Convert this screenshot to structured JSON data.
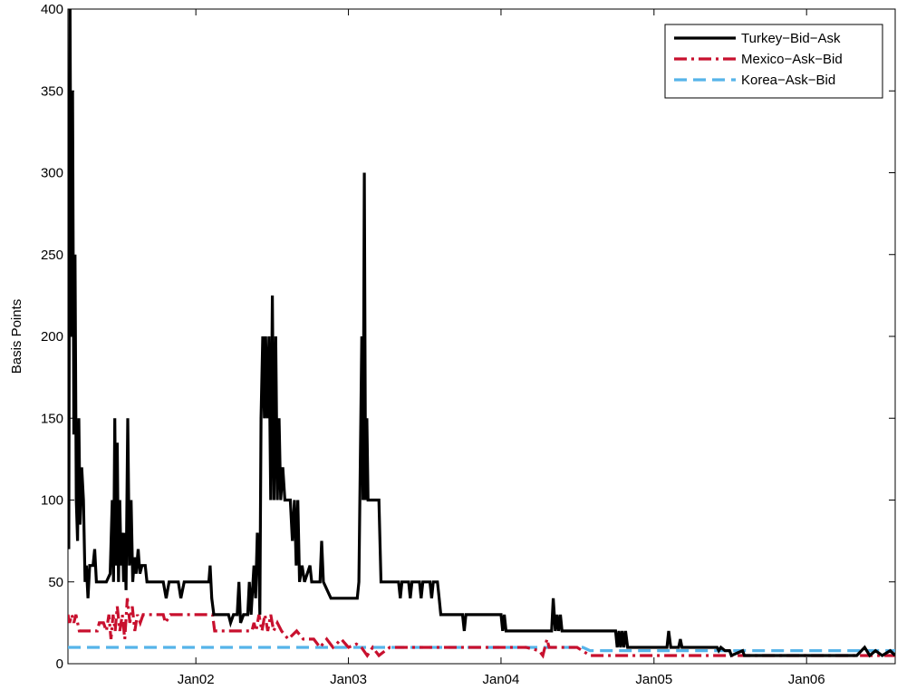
{
  "chart_data": {
    "type": "line",
    "title": "",
    "xlabel": "",
    "ylabel": "Basis Points",
    "x_unit": "date",
    "xlim": [
      "2001-03-01",
      "2006-08-01"
    ],
    "ylim": [
      0,
      400
    ],
    "y_ticks": [
      0,
      50,
      100,
      150,
      200,
      250,
      300,
      350,
      400
    ],
    "x_ticks": [
      {
        "date": "2002-01-01",
        "label": "Jan02"
      },
      {
        "date": "2003-01-01",
        "label": "Jan03"
      },
      {
        "date": "2004-01-01",
        "label": "Jan04"
      },
      {
        "date": "2005-01-01",
        "label": "Jan05"
      },
      {
        "date": "2006-01-01",
        "label": "Jan06"
      }
    ],
    "grid": false,
    "legend_position": "top-right",
    "series": [
      {
        "name": "Turkey−Bid−Ask",
        "color": "#000000",
        "style": "solid",
        "points": [
          [
            "2001-03-01",
            120
          ],
          [
            "2001-03-03",
            70
          ],
          [
            "2001-03-06",
            400
          ],
          [
            "2001-03-09",
            200
          ],
          [
            "2001-03-12",
            350
          ],
          [
            "2001-03-15",
            140
          ],
          [
            "2001-03-18",
            250
          ],
          [
            "2001-03-21",
            100
          ],
          [
            "2001-03-24",
            75
          ],
          [
            "2001-03-27",
            150
          ],
          [
            "2001-03-30",
            85
          ],
          [
            "2001-04-03",
            120
          ],
          [
            "2001-04-07",
            100
          ],
          [
            "2001-04-11",
            50
          ],
          [
            "2001-04-14",
            60
          ],
          [
            "2001-04-18",
            40
          ],
          [
            "2001-04-22",
            60
          ],
          [
            "2001-04-30",
            60
          ],
          [
            "2001-05-04",
            70
          ],
          [
            "2001-05-08",
            50
          ],
          [
            "2001-06-01",
            50
          ],
          [
            "2001-06-10",
            55
          ],
          [
            "2001-06-15",
            100
          ],
          [
            "2001-06-18",
            50
          ],
          [
            "2001-06-21",
            150
          ],
          [
            "2001-06-24",
            60
          ],
          [
            "2001-06-27",
            135
          ],
          [
            "2001-06-30",
            50
          ],
          [
            "2001-07-03",
            100
          ],
          [
            "2001-07-06",
            60
          ],
          [
            "2001-07-09",
            80
          ],
          [
            "2001-07-12",
            50
          ],
          [
            "2001-07-15",
            80
          ],
          [
            "2001-07-18",
            45
          ],
          [
            "2001-07-22",
            150
          ],
          [
            "2001-07-26",
            60
          ],
          [
            "2001-07-30",
            100
          ],
          [
            "2001-08-03",
            50
          ],
          [
            "2001-08-07",
            65
          ],
          [
            "2001-08-11",
            55
          ],
          [
            "2001-08-16",
            70
          ],
          [
            "2001-08-20",
            55
          ],
          [
            "2001-08-25",
            60
          ],
          [
            "2001-09-02",
            60
          ],
          [
            "2001-09-06",
            50
          ],
          [
            "2001-10-15",
            50
          ],
          [
            "2001-10-22",
            40
          ],
          [
            "2001-10-29",
            50
          ],
          [
            "2001-11-20",
            50
          ],
          [
            "2001-11-26",
            40
          ],
          [
            "2001-12-04",
            50
          ],
          [
            "2002-01-15",
            50
          ],
          [
            "2002-02-01",
            50
          ],
          [
            "2002-02-04",
            60
          ],
          [
            "2002-02-08",
            40
          ],
          [
            "2002-02-13",
            30
          ],
          [
            "2002-03-20",
            30
          ],
          [
            "2002-03-25",
            25
          ],
          [
            "2002-04-01",
            30
          ],
          [
            "2002-04-10",
            30
          ],
          [
            "2002-04-14",
            50
          ],
          [
            "2002-04-18",
            25
          ],
          [
            "2002-04-25",
            30
          ],
          [
            "2002-05-05",
            30
          ],
          [
            "2002-05-09",
            50
          ],
          [
            "2002-05-13",
            30
          ],
          [
            "2002-05-20",
            60
          ],
          [
            "2002-05-24",
            40
          ],
          [
            "2002-05-28",
            80
          ],
          [
            "2002-06-01",
            60
          ],
          [
            "2002-06-03",
            30
          ],
          [
            "2002-06-06",
            150
          ],
          [
            "2002-06-10",
            200
          ],
          [
            "2002-06-14",
            150
          ],
          [
            "2002-06-17",
            200
          ],
          [
            "2002-06-21",
            150
          ],
          [
            "2002-06-25",
            200
          ],
          [
            "2002-06-29",
            100
          ],
          [
            "2002-07-03",
            225
          ],
          [
            "2002-07-07",
            100
          ],
          [
            "2002-07-11",
            200
          ],
          [
            "2002-07-15",
            100
          ],
          [
            "2002-07-19",
            150
          ],
          [
            "2002-07-23",
            100
          ],
          [
            "2002-07-28",
            120
          ],
          [
            "2002-08-02",
            100
          ],
          [
            "2002-08-15",
            100
          ],
          [
            "2002-08-20",
            75
          ],
          [
            "2002-08-25",
            100
          ],
          [
            "2002-08-29",
            60
          ],
          [
            "2002-09-02",
            100
          ],
          [
            "2002-09-06",
            50
          ],
          [
            "2002-09-12",
            60
          ],
          [
            "2002-09-18",
            50
          ],
          [
            "2002-10-01",
            60
          ],
          [
            "2002-10-05",
            50
          ],
          [
            "2002-10-25",
            50
          ],
          [
            "2002-10-29",
            75
          ],
          [
            "2002-11-02",
            50
          ],
          [
            "2002-11-20",
            40
          ],
          [
            "2003-01-01",
            40
          ],
          [
            "2003-01-22",
            40
          ],
          [
            "2003-01-26",
            50
          ],
          [
            "2003-02-02",
            200
          ],
          [
            "2003-02-05",
            100
          ],
          [
            "2003-02-08",
            300
          ],
          [
            "2003-02-11",
            100
          ],
          [
            "2003-02-14",
            150
          ],
          [
            "2003-02-17",
            100
          ],
          [
            "2003-03-15",
            100
          ],
          [
            "2003-03-20",
            50
          ],
          [
            "2003-05-01",
            50
          ],
          [
            "2003-05-05",
            40
          ],
          [
            "2003-05-09",
            50
          ],
          [
            "2003-05-25",
            50
          ],
          [
            "2003-05-29",
            40
          ],
          [
            "2003-06-02",
            50
          ],
          [
            "2003-06-20",
            50
          ],
          [
            "2003-06-24",
            40
          ],
          [
            "2003-06-28",
            50
          ],
          [
            "2003-07-15",
            50
          ],
          [
            "2003-07-19",
            40
          ],
          [
            "2003-07-23",
            50
          ],
          [
            "2003-08-02",
            50
          ],
          [
            "2003-08-06",
            40
          ],
          [
            "2003-08-10",
            30
          ],
          [
            "2003-10-01",
            30
          ],
          [
            "2003-10-05",
            20
          ],
          [
            "2003-10-09",
            30
          ],
          [
            "2004-01-01",
            30
          ],
          [
            "2004-01-05",
            20
          ],
          [
            "2004-01-09",
            30
          ],
          [
            "2004-01-13",
            20
          ],
          [
            "2004-05-01",
            20
          ],
          [
            "2004-05-05",
            40
          ],
          [
            "2004-05-10",
            20
          ],
          [
            "2004-05-14",
            30
          ],
          [
            "2004-05-18",
            20
          ],
          [
            "2004-05-22",
            30
          ],
          [
            "2004-05-26",
            20
          ],
          [
            "2004-10-01",
            20
          ],
          [
            "2004-10-05",
            10
          ],
          [
            "2004-10-09",
            20
          ],
          [
            "2004-10-13",
            10
          ],
          [
            "2004-10-17",
            20
          ],
          [
            "2004-10-21",
            10
          ],
          [
            "2004-10-25",
            20
          ],
          [
            "2004-10-30",
            10
          ],
          [
            "2005-02-01",
            10
          ],
          [
            "2005-02-05",
            20
          ],
          [
            "2005-02-10",
            10
          ],
          [
            "2005-03-01",
            10
          ],
          [
            "2005-03-05",
            15
          ],
          [
            "2005-03-09",
            10
          ],
          [
            "2005-06-01",
            10
          ],
          [
            "2005-06-05",
            8
          ],
          [
            "2005-06-10",
            10
          ],
          [
            "2005-06-20",
            8
          ],
          [
            "2005-07-01",
            8
          ],
          [
            "2005-07-05",
            5
          ],
          [
            "2005-08-01",
            8
          ],
          [
            "2005-08-05",
            5
          ],
          [
            "2005-09-01",
            5
          ],
          [
            "2005-12-01",
            5
          ],
          [
            "2006-01-01",
            5
          ],
          [
            "2006-02-01",
            5
          ],
          [
            "2006-03-01",
            5
          ],
          [
            "2006-04-01",
            5
          ],
          [
            "2006-05-01",
            5
          ],
          [
            "2006-05-20",
            10
          ],
          [
            "2006-06-01",
            5
          ],
          [
            "2006-06-15",
            8
          ],
          [
            "2006-07-01",
            5
          ],
          [
            "2006-07-20",
            8
          ],
          [
            "2006-08-01",
            5
          ]
        ]
      },
      {
        "name": "Mexico−Ask−Bid",
        "color": "#c8102e",
        "style": "dashdot",
        "points": [
          [
            "2001-03-01",
            30
          ],
          [
            "2001-03-05",
            25
          ],
          [
            "2001-03-10",
            30
          ],
          [
            "2001-03-15",
            25
          ],
          [
            "2001-03-20",
            30
          ],
          [
            "2001-03-28",
            20
          ],
          [
            "2001-05-10",
            20
          ],
          [
            "2001-05-15",
            25
          ],
          [
            "2001-05-25",
            25
          ],
          [
            "2001-06-01",
            20
          ],
          [
            "2001-06-07",
            30
          ],
          [
            "2001-06-12",
            15
          ],
          [
            "2001-06-17",
            30
          ],
          [
            "2001-06-22",
            20
          ],
          [
            "2001-06-27",
            35
          ],
          [
            "2001-07-03",
            20
          ],
          [
            "2001-07-09",
            30
          ],
          [
            "2001-07-15",
            15
          ],
          [
            "2001-07-21",
            40
          ],
          [
            "2001-07-27",
            25
          ],
          [
            "2001-08-02",
            35
          ],
          [
            "2001-08-08",
            20
          ],
          [
            "2001-08-14",
            30
          ],
          [
            "2001-08-21",
            25
          ],
          [
            "2001-08-28",
            30
          ],
          [
            "2001-10-15",
            30
          ],
          [
            "2001-10-20",
            25
          ],
          [
            "2001-11-01",
            30
          ],
          [
            "2002-01-01",
            30
          ],
          [
            "2002-02-10",
            30
          ],
          [
            "2002-02-15",
            20
          ],
          [
            "2002-05-15",
            20
          ],
          [
            "2002-05-20",
            25
          ],
          [
            "2002-05-25",
            20
          ],
          [
            "2002-06-01",
            30
          ],
          [
            "2002-06-08",
            20
          ],
          [
            "2002-06-15",
            30
          ],
          [
            "2002-06-22",
            20
          ],
          [
            "2002-06-29",
            30
          ],
          [
            "2002-07-06",
            20
          ],
          [
            "2002-07-15",
            25
          ],
          [
            "2002-07-25",
            20
          ],
          [
            "2002-08-10",
            15
          ],
          [
            "2002-08-30",
            20
          ],
          [
            "2002-09-15",
            15
          ],
          [
            "2002-10-10",
            15
          ],
          [
            "2002-10-25",
            10
          ],
          [
            "2002-11-10",
            15
          ],
          [
            "2002-11-25",
            10
          ],
          [
            "2002-12-15",
            15
          ],
          [
            "2003-01-01",
            10
          ],
          [
            "2003-01-20",
            12
          ],
          [
            "2003-02-01",
            10
          ],
          [
            "2003-02-15",
            5
          ],
          [
            "2003-02-28",
            10
          ],
          [
            "2003-03-15",
            5
          ],
          [
            "2003-03-30",
            8
          ],
          [
            "2003-04-10",
            10
          ],
          [
            "2003-06-01",
            10
          ],
          [
            "2003-08-01",
            10
          ],
          [
            "2004-01-01",
            10
          ],
          [
            "2004-03-01",
            10
          ],
          [
            "2004-04-01",
            8
          ],
          [
            "2004-04-10",
            5
          ],
          [
            "2004-04-20",
            15
          ],
          [
            "2004-04-25",
            10
          ],
          [
            "2004-07-01",
            10
          ],
          [
            "2004-08-01",
            5
          ],
          [
            "2005-06-01",
            5
          ],
          [
            "2006-01-01",
            5
          ],
          [
            "2006-08-01",
            5
          ]
        ]
      },
      {
        "name": "Korea−Ask−Bid",
        "color": "#56b4e9",
        "style": "dashed",
        "points": [
          [
            "2001-03-01",
            10
          ],
          [
            "2004-07-15",
            10
          ],
          [
            "2004-08-01",
            8
          ],
          [
            "2006-08-01",
            8
          ]
        ]
      }
    ]
  }
}
